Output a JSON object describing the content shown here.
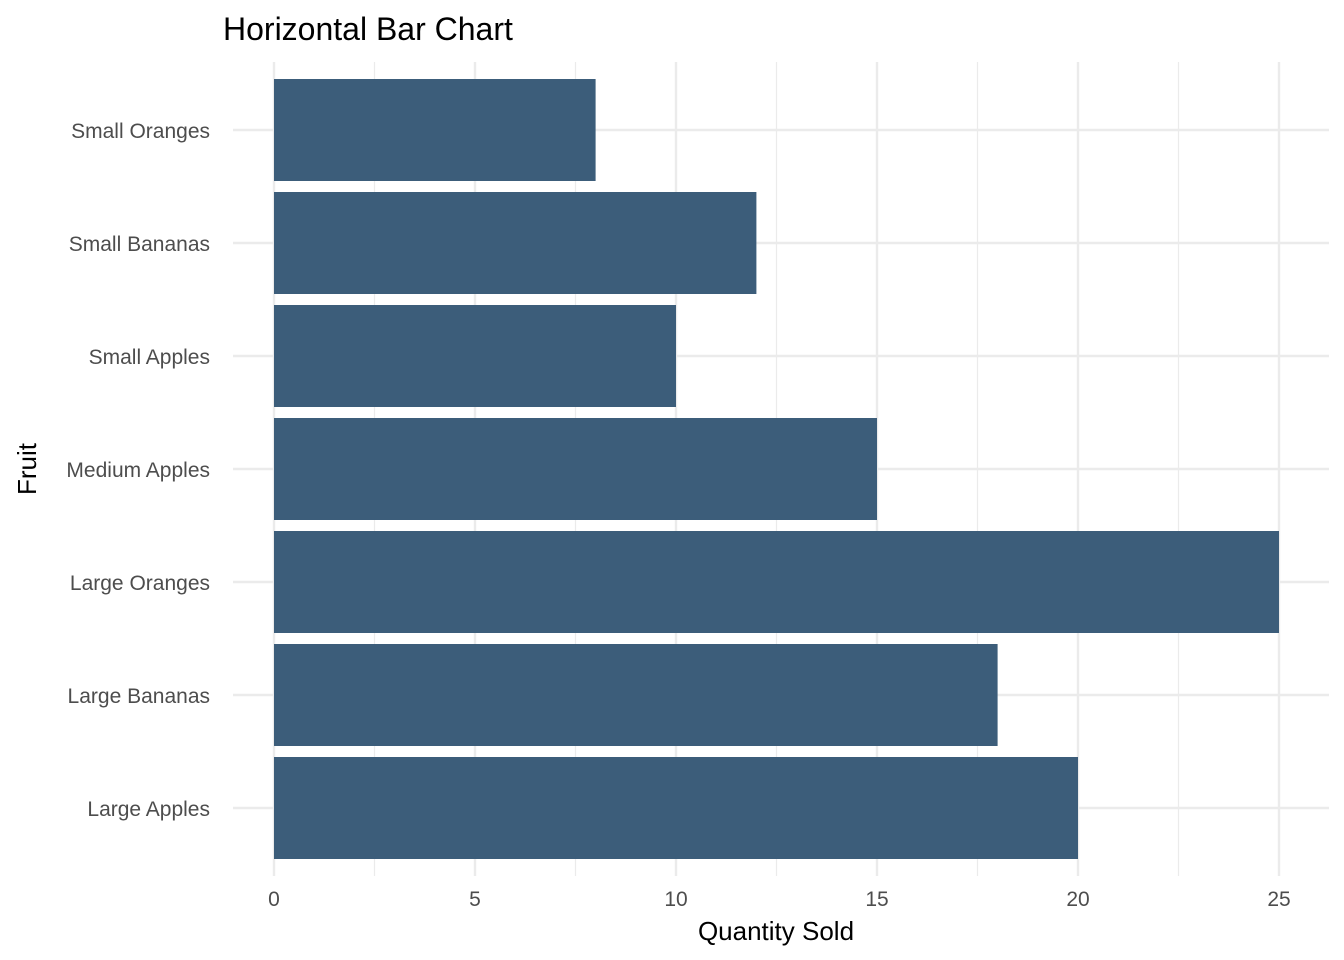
{
  "chart_data": {
    "type": "bar",
    "orientation": "horizontal",
    "title": "Horizontal Bar Chart",
    "xlabel": "Quantity Sold",
    "ylabel": "Fruit",
    "categories": [
      "Large Apples",
      "Large Bananas",
      "Large Oranges",
      "Medium Apples",
      "Small Apples",
      "Small Bananas",
      "Small Oranges"
    ],
    "values": [
      20,
      18,
      25,
      15,
      10,
      12,
      8
    ],
    "xlim": [
      0,
      25
    ],
    "x_ticks": [
      0,
      5,
      10,
      15,
      20,
      25
    ],
    "grid": true,
    "bar_color": "#3c5d7a",
    "grid_color": "#ebebeb"
  }
}
